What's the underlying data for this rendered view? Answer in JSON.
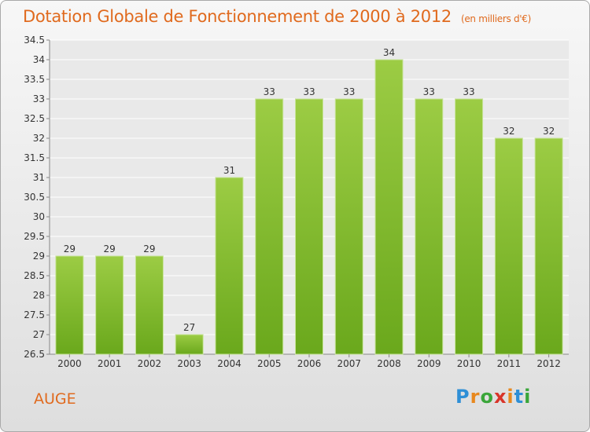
{
  "header": {
    "title": "Dotation Globale de Fonctionnement de 2000 à 2012",
    "subtitle": "(en milliers d'€)"
  },
  "footer": {
    "commune": "AUGE",
    "logo_text": "Proxiti"
  },
  "colors": {
    "title": "#e06a1e",
    "bar_top": "#9ccc44",
    "bar_bottom": "#6aa81c"
  },
  "chart_data": {
    "type": "bar",
    "title": "Dotation Globale de Fonctionnement de 2000 à 2012",
    "subtitle": "(en milliers d'€)",
    "xlabel": "",
    "ylabel": "",
    "categories": [
      "2000",
      "2001",
      "2002",
      "2003",
      "2004",
      "2005",
      "2006",
      "2007",
      "2008",
      "2009",
      "2010",
      "2011",
      "2012"
    ],
    "values": [
      29,
      29,
      29,
      27,
      31,
      33,
      33,
      33,
      34,
      33,
      33,
      32,
      32
    ],
    "value_labels": [
      "29",
      "29",
      "29",
      "27",
      "31",
      "33",
      "33",
      "33",
      "34",
      "33",
      "33",
      "32",
      "32"
    ],
    "ylim": [
      26.5,
      34.5
    ],
    "yticks": [
      26.5,
      27,
      27.5,
      28,
      28.5,
      29,
      29.5,
      30,
      30.5,
      31,
      31.5,
      32,
      32.5,
      33,
      33.5,
      34,
      34.5
    ],
    "ytick_labels": [
      "26.5",
      "27",
      "27.5",
      "28",
      "28.5",
      "29",
      "29.5",
      "30",
      "30.5",
      "31",
      "31.5",
      "32",
      "32.5",
      "33",
      "33.5",
      "34",
      "34.5"
    ],
    "grid": true,
    "legend": "none"
  }
}
